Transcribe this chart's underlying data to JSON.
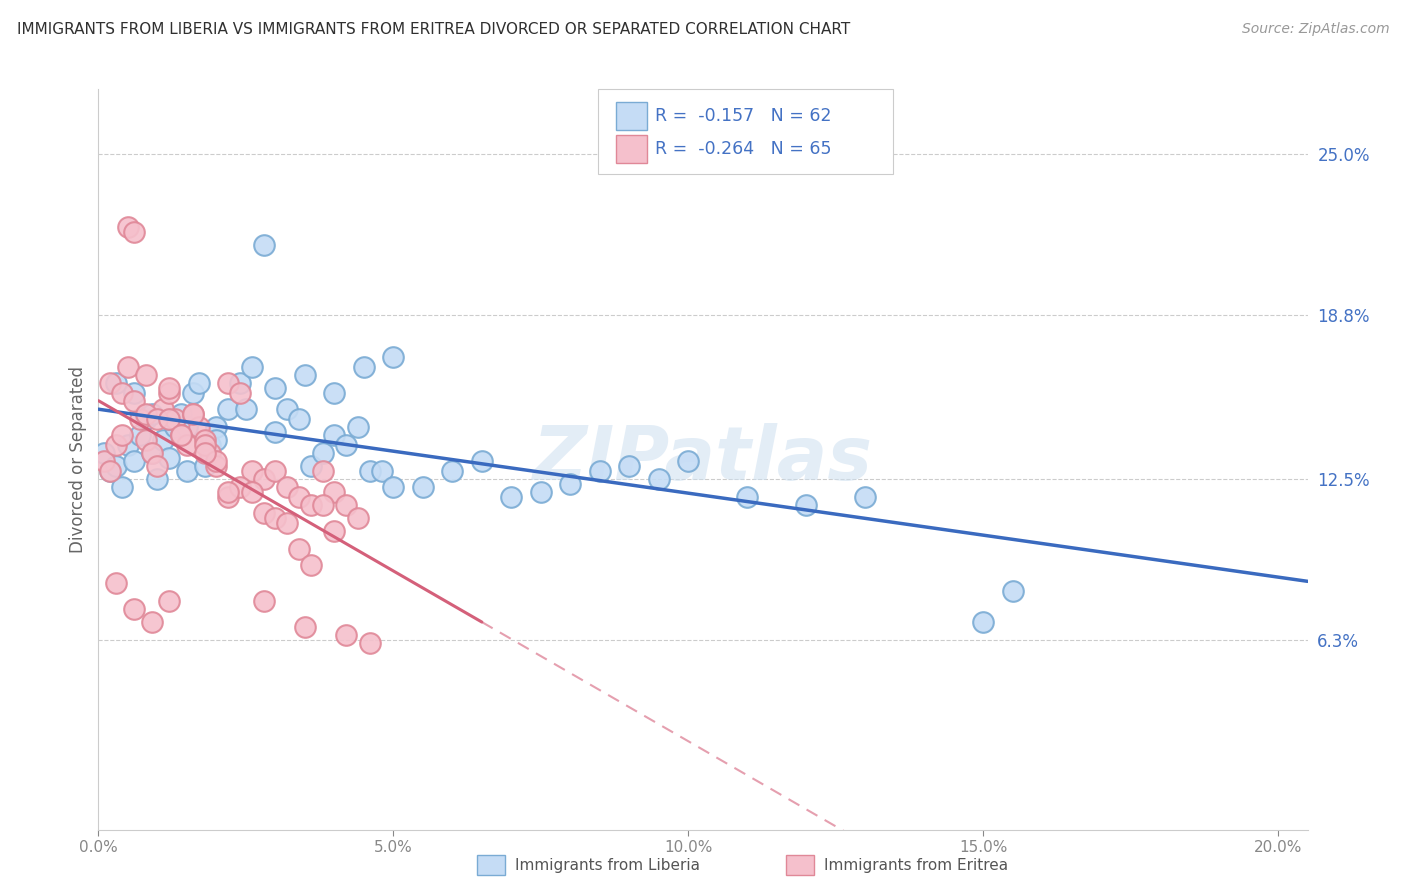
{
  "title": "IMMIGRANTS FROM LIBERIA VS IMMIGRANTS FROM ERITREA DIVORCED OR SEPARATED CORRELATION CHART",
  "source": "Source: ZipAtlas.com",
  "ylabel": "Divorced or Separated",
  "x_tick_labels": [
    "0.0%",
    "5.0%",
    "10.0%",
    "15.0%",
    "20.0%"
  ],
  "x_tick_values": [
    0.0,
    0.05,
    0.1,
    0.15,
    0.2
  ],
  "y_tick_labels": [
    "6.3%",
    "12.5%",
    "18.8%",
    "25.0%"
  ],
  "y_tick_values": [
    0.063,
    0.125,
    0.188,
    0.25
  ],
  "xlim": [
    0.0,
    0.205
  ],
  "ylim": [
    -0.01,
    0.275
  ],
  "legend_r1": "-0.157",
  "legend_n1": "62",
  "legend_r2": "-0.264",
  "legend_n2": "65",
  "color_liberia_fill": "#c5dcf5",
  "color_liberia_edge": "#7aabd4",
  "color_eritrea_fill": "#f5c0cc",
  "color_eritrea_edge": "#e08898",
  "line_color_liberia": "#3a6abf",
  "line_color_eritrea": "#d4607a",
  "watermark": "ZIPatlas",
  "title_color": "#303030",
  "right_tick_color": "#4472c4",
  "legend_text_color": "#4472c4",
  "scatter_liberia_x": [
    0.001,
    0.002,
    0.003,
    0.004,
    0.005,
    0.006,
    0.007,
    0.008,
    0.009,
    0.01,
    0.011,
    0.012,
    0.013,
    0.014,
    0.015,
    0.016,
    0.017,
    0.018,
    0.019,
    0.02,
    0.022,
    0.024,
    0.026,
    0.028,
    0.03,
    0.032,
    0.034,
    0.036,
    0.038,
    0.04,
    0.042,
    0.044,
    0.046,
    0.048,
    0.05,
    0.055,
    0.06,
    0.065,
    0.07,
    0.075,
    0.08,
    0.085,
    0.09,
    0.095,
    0.1,
    0.11,
    0.12,
    0.13,
    0.003,
    0.006,
    0.009,
    0.012,
    0.015,
    0.02,
    0.025,
    0.03,
    0.035,
    0.04,
    0.045,
    0.05,
    0.15,
    0.155
  ],
  "scatter_liberia_y": [
    0.135,
    0.128,
    0.13,
    0.122,
    0.138,
    0.132,
    0.142,
    0.148,
    0.135,
    0.125,
    0.14,
    0.133,
    0.145,
    0.15,
    0.128,
    0.158,
    0.162,
    0.13,
    0.138,
    0.145,
    0.152,
    0.162,
    0.168,
    0.215,
    0.143,
    0.152,
    0.148,
    0.13,
    0.135,
    0.142,
    0.138,
    0.145,
    0.128,
    0.128,
    0.122,
    0.122,
    0.128,
    0.132,
    0.118,
    0.12,
    0.123,
    0.128,
    0.13,
    0.125,
    0.132,
    0.118,
    0.115,
    0.118,
    0.162,
    0.158,
    0.15,
    0.148,
    0.145,
    0.14,
    0.152,
    0.16,
    0.165,
    0.158,
    0.168,
    0.172,
    0.07,
    0.082
  ],
  "scatter_eritrea_x": [
    0.001,
    0.002,
    0.003,
    0.004,
    0.005,
    0.006,
    0.007,
    0.008,
    0.009,
    0.01,
    0.011,
    0.012,
    0.013,
    0.014,
    0.015,
    0.016,
    0.017,
    0.018,
    0.019,
    0.02,
    0.022,
    0.024,
    0.026,
    0.028,
    0.03,
    0.032,
    0.034,
    0.036,
    0.038,
    0.04,
    0.042,
    0.044,
    0.002,
    0.004,
    0.006,
    0.008,
    0.01,
    0.012,
    0.014,
    0.016,
    0.018,
    0.02,
    0.022,
    0.024,
    0.026,
    0.028,
    0.03,
    0.032,
    0.034,
    0.036,
    0.038,
    0.04,
    0.005,
    0.008,
    0.012,
    0.018,
    0.022,
    0.028,
    0.035,
    0.042,
    0.003,
    0.006,
    0.009,
    0.012,
    0.046
  ],
  "scatter_eritrea_y": [
    0.132,
    0.128,
    0.138,
    0.142,
    0.222,
    0.22,
    0.148,
    0.14,
    0.135,
    0.13,
    0.152,
    0.158,
    0.148,
    0.142,
    0.138,
    0.15,
    0.145,
    0.14,
    0.135,
    0.13,
    0.162,
    0.158,
    0.128,
    0.125,
    0.128,
    0.122,
    0.118,
    0.115,
    0.128,
    0.12,
    0.115,
    0.11,
    0.162,
    0.158,
    0.155,
    0.15,
    0.148,
    0.148,
    0.142,
    0.15,
    0.138,
    0.132,
    0.118,
    0.122,
    0.12,
    0.112,
    0.11,
    0.108,
    0.098,
    0.092,
    0.115,
    0.105,
    0.168,
    0.165,
    0.16,
    0.135,
    0.12,
    0.078,
    0.068,
    0.065,
    0.085,
    0.075,
    0.07,
    0.078,
    0.062
  ]
}
